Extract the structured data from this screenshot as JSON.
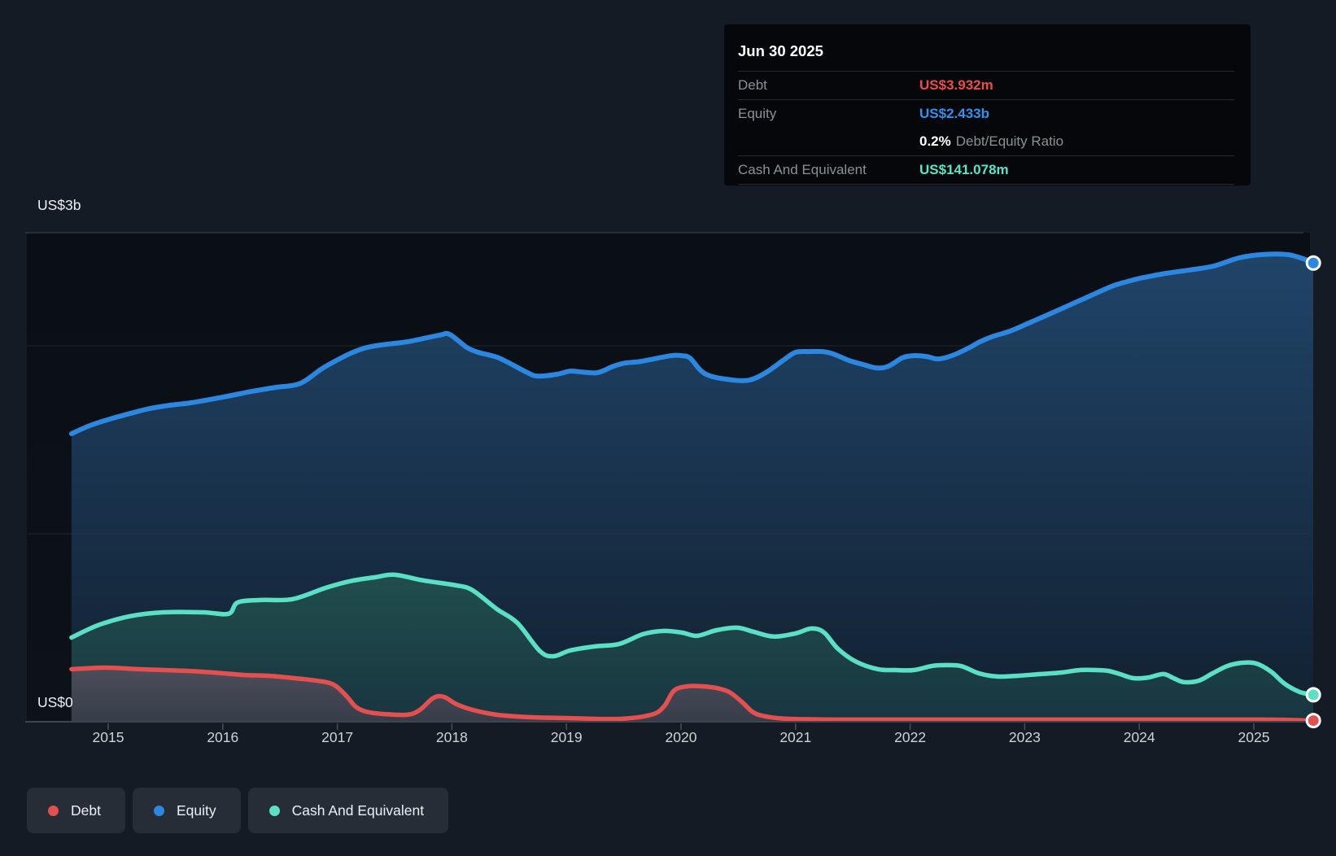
{
  "colors": {
    "debt": "#e3504f",
    "equity": "#2b87e0",
    "cash": "#5ce0c5",
    "debt_value": "#ee4b4b",
    "equity_value": "#2e93ee",
    "cash_value": "#55e6c8"
  },
  "tooltip": {
    "title": "Jun 30 2025",
    "debt": {
      "label": "Debt",
      "value": "US$3.932m"
    },
    "equity": {
      "label": "Equity",
      "value": "US$2.433b"
    },
    "ratio": {
      "value": "0.2%",
      "label": "Debt/Equity Ratio"
    },
    "cash": {
      "label": "Cash And Equivalent",
      "value": "US$141.078m"
    }
  },
  "axis": {
    "y_top_label": "US$3b",
    "y_bottom_label": "US$0",
    "x_ticks": [
      "2015",
      "2016",
      "2017",
      "2018",
      "2019",
      "2020",
      "2021",
      "2022",
      "2023",
      "2024",
      "2025"
    ]
  },
  "legend": [
    {
      "label": "Debt",
      "color": "#e3504f"
    },
    {
      "label": "Equity",
      "color": "#2b87e0"
    },
    {
      "label": "Cash And Equivalent",
      "color": "#5ce0c5"
    }
  ],
  "chart_data": {
    "type": "area",
    "units": "US$ billions",
    "x_units": "decimal year",
    "x_range": [
      2014.68,
      2025.52
    ],
    "ylim": [
      0,
      3
    ],
    "y_axis_labels": [
      "US$0",
      "US$3b"
    ],
    "grid": true,
    "legend_position": "bottom-left",
    "series": [
      {
        "name": "Equity",
        "color": "#2b87e0",
        "final_label": "US$2.433b",
        "points": [
          [
            2014.68,
            1.527
          ],
          [
            2014.84,
            1.57
          ],
          [
            2015.01,
            1.604
          ],
          [
            2015.19,
            1.634
          ],
          [
            2015.36,
            1.66
          ],
          [
            2015.54,
            1.678
          ],
          [
            2015.72,
            1.691
          ],
          [
            2016.0,
            1.721
          ],
          [
            2016.25,
            1.751
          ],
          [
            2016.46,
            1.773
          ],
          [
            2016.68,
            1.795
          ],
          [
            2016.9,
            1.885
          ],
          [
            2017.23,
            1.98
          ],
          [
            2017.61,
            2.015
          ],
          [
            2017.89,
            2.05
          ],
          [
            2017.98,
            2.054
          ],
          [
            2018.13,
            1.985
          ],
          [
            2018.23,
            1.959
          ],
          [
            2018.41,
            1.929
          ],
          [
            2018.66,
            1.851
          ],
          [
            2018.75,
            1.833
          ],
          [
            2018.91,
            1.842
          ],
          [
            2019.03,
            1.859
          ],
          [
            2019.13,
            1.855
          ],
          [
            2019.27,
            1.851
          ],
          [
            2019.41,
            1.885
          ],
          [
            2019.51,
            1.902
          ],
          [
            2019.65,
            1.911
          ],
          [
            2019.91,
            1.941
          ],
          [
            2020.01,
            1.941
          ],
          [
            2020.08,
            1.928
          ],
          [
            2020.17,
            1.864
          ],
          [
            2020.26,
            1.833
          ],
          [
            2020.45,
            1.812
          ],
          [
            2020.6,
            1.812
          ],
          [
            2020.74,
            1.851
          ],
          [
            2020.9,
            1.92
          ],
          [
            2021.0,
            1.959
          ],
          [
            2021.12,
            1.963
          ],
          [
            2021.24,
            1.963
          ],
          [
            2021.33,
            1.95
          ],
          [
            2021.47,
            1.915
          ],
          [
            2021.59,
            1.894
          ],
          [
            2021.71,
            1.876
          ],
          [
            2021.81,
            1.885
          ],
          [
            2021.93,
            1.929
          ],
          [
            2022.02,
            1.941
          ],
          [
            2022.14,
            1.937
          ],
          [
            2022.23,
            1.924
          ],
          [
            2022.3,
            1.929
          ],
          [
            2022.4,
            1.95
          ],
          [
            2022.52,
            1.985
          ],
          [
            2022.61,
            2.015
          ],
          [
            2022.73,
            2.045
          ],
          [
            2022.87,
            2.071
          ],
          [
            2023.02,
            2.11
          ],
          [
            2023.23,
            2.166
          ],
          [
            2023.44,
            2.223
          ],
          [
            2023.66,
            2.283
          ],
          [
            2023.8,
            2.318
          ],
          [
            2023.98,
            2.348
          ],
          [
            2024.08,
            2.361
          ],
          [
            2024.23,
            2.378
          ],
          [
            2024.44,
            2.396
          ],
          [
            2024.65,
            2.417
          ],
          [
            2024.87,
            2.46
          ],
          [
            2025.08,
            2.478
          ],
          [
            2025.29,
            2.478
          ],
          [
            2025.43,
            2.456
          ],
          [
            2025.52,
            2.433
          ]
        ]
      },
      {
        "name": "Cash And Equivalent",
        "color": "#5ce0c5",
        "final_label": "US$141.078m",
        "points": [
          [
            2014.68,
            0.445
          ],
          [
            2014.91,
            0.51
          ],
          [
            2015.19,
            0.558
          ],
          [
            2015.48,
            0.579
          ],
          [
            2015.83,
            0.579
          ],
          [
            2016.05,
            0.571
          ],
          [
            2016.13,
            0.631
          ],
          [
            2016.33,
            0.644
          ],
          [
            2016.61,
            0.649
          ],
          [
            2016.9,
            0.709
          ],
          [
            2017.11,
            0.744
          ],
          [
            2017.33,
            0.765
          ],
          [
            2017.5,
            0.778
          ],
          [
            2017.75,
            0.748
          ],
          [
            2018.04,
            0.722
          ],
          [
            2018.18,
            0.696
          ],
          [
            2018.39,
            0.597
          ],
          [
            2018.57,
            0.523
          ],
          [
            2018.77,
            0.372
          ],
          [
            2018.89,
            0.346
          ],
          [
            2019.03,
            0.376
          ],
          [
            2019.25,
            0.398
          ],
          [
            2019.46,
            0.411
          ],
          [
            2019.67,
            0.463
          ],
          [
            2019.85,
            0.48
          ],
          [
            2020.01,
            0.471
          ],
          [
            2020.14,
            0.454
          ],
          [
            2020.31,
            0.484
          ],
          [
            2020.49,
            0.497
          ],
          [
            2020.63,
            0.476
          ],
          [
            2020.81,
            0.45
          ],
          [
            2021.0,
            0.467
          ],
          [
            2021.14,
            0.493
          ],
          [
            2021.25,
            0.471
          ],
          [
            2021.37,
            0.385
          ],
          [
            2021.53,
            0.316
          ],
          [
            2021.72,
            0.277
          ],
          [
            2021.88,
            0.272
          ],
          [
            2022.03,
            0.272
          ],
          [
            2022.19,
            0.294
          ],
          [
            2022.28,
            0.298
          ],
          [
            2022.44,
            0.294
          ],
          [
            2022.6,
            0.255
          ],
          [
            2022.76,
            0.238
          ],
          [
            2022.94,
            0.242
          ],
          [
            2023.14,
            0.251
          ],
          [
            2023.32,
            0.259
          ],
          [
            2023.48,
            0.272
          ],
          [
            2023.63,
            0.272
          ],
          [
            2023.73,
            0.268
          ],
          [
            2023.83,
            0.251
          ],
          [
            2023.95,
            0.229
          ],
          [
            2024.08,
            0.233
          ],
          [
            2024.21,
            0.251
          ],
          [
            2024.3,
            0.229
          ],
          [
            2024.39,
            0.208
          ],
          [
            2024.52,
            0.216
          ],
          [
            2024.64,
            0.255
          ],
          [
            2024.77,
            0.294
          ],
          [
            2024.9,
            0.311
          ],
          [
            2025.02,
            0.307
          ],
          [
            2025.15,
            0.264
          ],
          [
            2025.27,
            0.199
          ],
          [
            2025.4,
            0.156
          ],
          [
            2025.52,
            0.141
          ]
        ]
      },
      {
        "name": "Debt",
        "color": "#e3504f",
        "final_label": "US$3.932m",
        "points": [
          [
            2014.68,
            0.277
          ],
          [
            2014.98,
            0.285
          ],
          [
            2015.26,
            0.277
          ],
          [
            2015.69,
            0.268
          ],
          [
            2015.92,
            0.259
          ],
          [
            2016.19,
            0.246
          ],
          [
            2016.4,
            0.242
          ],
          [
            2016.69,
            0.225
          ],
          [
            2016.9,
            0.208
          ],
          [
            2016.99,
            0.186
          ],
          [
            2017.08,
            0.134
          ],
          [
            2017.16,
            0.078
          ],
          [
            2017.25,
            0.052
          ],
          [
            2017.4,
            0.039
          ],
          [
            2017.61,
            0.035
          ],
          [
            2017.72,
            0.061
          ],
          [
            2017.84,
            0.125
          ],
          [
            2017.93,
            0.13
          ],
          [
            2018.04,
            0.091
          ],
          [
            2018.18,
            0.061
          ],
          [
            2018.39,
            0.035
          ],
          [
            2018.68,
            0.022
          ],
          [
            2019.03,
            0.017
          ],
          [
            2019.46,
            0.013
          ],
          [
            2019.74,
            0.035
          ],
          [
            2019.85,
            0.078
          ],
          [
            2019.94,
            0.164
          ],
          [
            2020.06,
            0.186
          ],
          [
            2020.18,
            0.186
          ],
          [
            2020.31,
            0.177
          ],
          [
            2020.42,
            0.156
          ],
          [
            2020.53,
            0.104
          ],
          [
            2020.63,
            0.048
          ],
          [
            2020.74,
            0.026
          ],
          [
            2020.95,
            0.013
          ],
          [
            2021.52,
            0.009
          ],
          [
            2022.59,
            0.009
          ],
          [
            2024.01,
            0.009
          ],
          [
            2025.08,
            0.009
          ],
          [
            2025.52,
            0.004
          ]
        ]
      }
    ]
  }
}
